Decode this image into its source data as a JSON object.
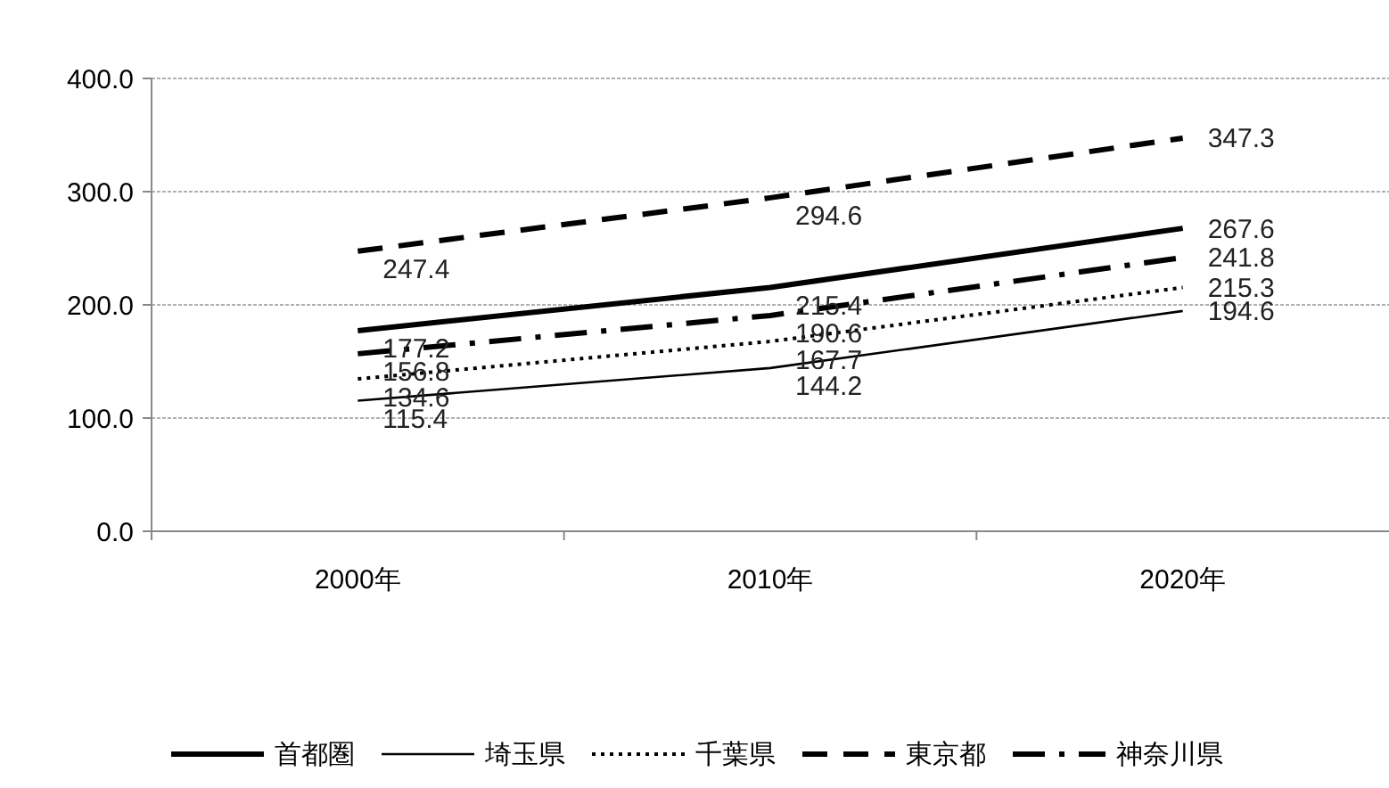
{
  "chart_data": {
    "type": "line",
    "categories": [
      "2000年",
      "2010年",
      "2020年"
    ],
    "series": [
      {
        "name": "首都圏",
        "color": "#000000",
        "line_style": "solid",
        "values": [
          177.2,
          215.4,
          267.6
        ]
      },
      {
        "name": "埼玉県",
        "color": "#000000",
        "line_style": "solid",
        "values": [
          115.4,
          144.2,
          194.6
        ]
      },
      {
        "name": "千葉県",
        "color": "#000000",
        "line_style": "dotted",
        "values": [
          134.6,
          167.7,
          215.3
        ]
      },
      {
        "name": "東京都",
        "color": "#000000",
        "line_style": "dashed",
        "values": [
          247.4,
          294.6,
          347.3
        ]
      },
      {
        "name": "神奈川県",
        "color": "#000000",
        "line_style": "dashdot",
        "values": [
          156.8,
          190.6,
          241.8
        ]
      }
    ],
    "ylim": [
      0,
      400
    ],
    "yticks": [
      {
        "value": 0,
        "label": "0.0"
      },
      {
        "value": 100,
        "label": "100.0"
      },
      {
        "value": 200,
        "label": "200.0"
      },
      {
        "value": 300,
        "label": "300.0"
      },
      {
        "value": 400,
        "label": "400.0"
      }
    ],
    "grid": "y",
    "data_labels": true,
    "legend": "bottom"
  }
}
